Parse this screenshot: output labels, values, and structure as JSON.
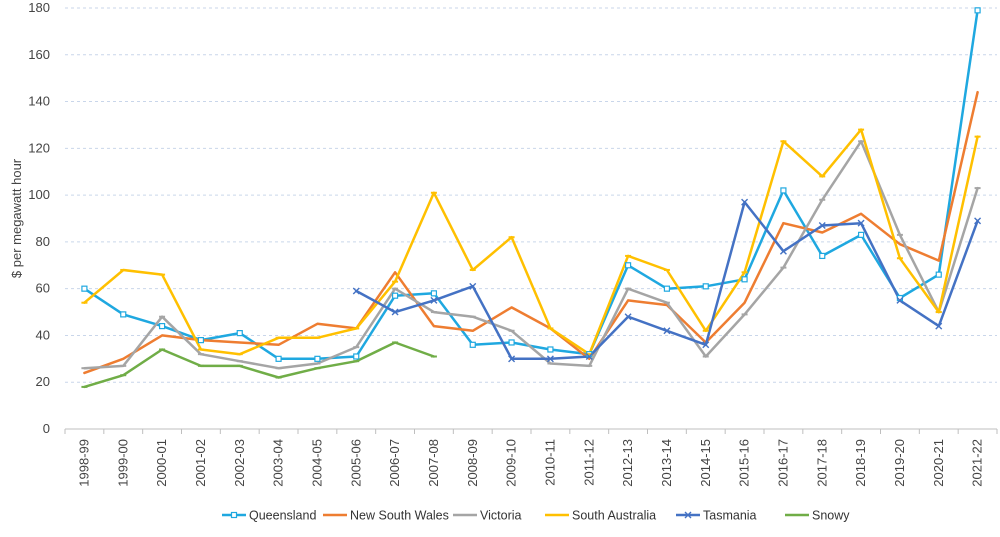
{
  "chart_data": {
    "type": "line",
    "title": "",
    "xlabel": "",
    "ylabel": "$ per megawatt hour",
    "ylim": [
      0,
      180
    ],
    "yticks": [
      0,
      20,
      40,
      60,
      80,
      100,
      120,
      140,
      160,
      180
    ],
    "grid": "horizontal dashed",
    "legend_position": "bottom",
    "categories": [
      "1998-99",
      "1999-00",
      "2000-01",
      "2001-02",
      "2002-03",
      "2003-04",
      "2004-05",
      "2005-06",
      "2006-07",
      "2007-08",
      "2008-09",
      "2009-10",
      "2010-11",
      "2011-12",
      "2012-13",
      "2013-14",
      "2014-15",
      "2015-16",
      "2016-17",
      "2017-18",
      "2018-19",
      "2019-20",
      "2020-21",
      "2021-22"
    ],
    "series": [
      {
        "name": "Queensland",
        "color": "#1fa8e0",
        "marker": "square",
        "values": [
          60,
          49,
          44,
          38,
          41,
          30,
          30,
          31,
          57,
          58,
          36,
          37,
          34,
          32,
          70,
          60,
          61,
          64,
          102,
          74,
          83,
          56,
          66,
          179
        ]
      },
      {
        "name": "New South Wales",
        "color": "#ee7d31",
        "marker": "none",
        "values": [
          24,
          30,
          40,
          38,
          37,
          36,
          45,
          43,
          67,
          44,
          42,
          52,
          43,
          30,
          55,
          53,
          37,
          54,
          88,
          84,
          92,
          79,
          72,
          144
        ]
      },
      {
        "name": "Victoria",
        "color": "#a5a5a5",
        "marker": "dash",
        "values": [
          26,
          27,
          48,
          32,
          29,
          26,
          28,
          35,
          60,
          50,
          48,
          42,
          28,
          27,
          60,
          54,
          31,
          49,
          69,
          98,
          123,
          83,
          50,
          103
        ]
      },
      {
        "name": "South Australia",
        "color": "#ffc000",
        "marker": "dash",
        "values": [
          54,
          68,
          66,
          34,
          32,
          39,
          39,
          43,
          63,
          101,
          68,
          82,
          43,
          32,
          74,
          68,
          42,
          67,
          123,
          108,
          128,
          73,
          50,
          125
        ]
      },
      {
        "name": "Tasmania",
        "color": "#4472c4",
        "marker": "star",
        "values": [
          null,
          null,
          null,
          null,
          null,
          null,
          null,
          59,
          50,
          55,
          61,
          30,
          30,
          31,
          48,
          42,
          36,
          97,
          76,
          87,
          88,
          55,
          44,
          89
        ]
      },
      {
        "name": "Snowy",
        "color": "#70ad47",
        "marker": "dash",
        "values": [
          18,
          23,
          34,
          27,
          27,
          22,
          26,
          29,
          37,
          31,
          null,
          null,
          null,
          null,
          null,
          null,
          null,
          null,
          null,
          null,
          null,
          null,
          null,
          null
        ]
      }
    ]
  }
}
